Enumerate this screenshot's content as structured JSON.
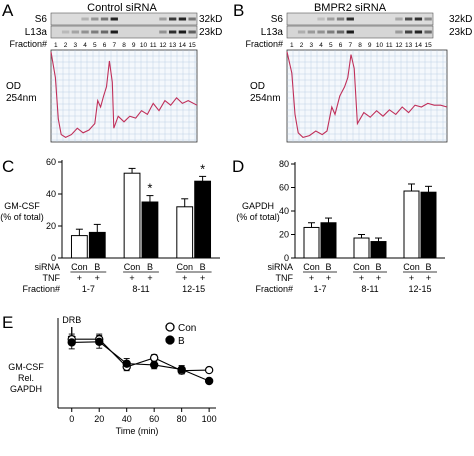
{
  "panels": [
    {
      "letter": "A",
      "title": "Control siRNA",
      "blot_labels": [
        "S6",
        "L13a",
        "Fraction#"
      ],
      "kd_labels": [
        "32kD",
        "23kD"
      ],
      "fractions": [
        "1",
        "2",
        "3",
        "4",
        "5",
        "6",
        "7",
        "8",
        "9",
        "10",
        "11",
        "12",
        "13",
        "14",
        "15"
      ],
      "y_label": [
        "OD",
        "254nm"
      ],
      "trace_color": "#c0305a",
      "grid_color": "#a9c3dc"
    },
    {
      "letter": "B",
      "title": "BMPR2 siRNA",
      "blot_labels": [
        "S6",
        "L13a",
        "Fraction#"
      ],
      "kd_labels": [
        "32kD",
        "23kD"
      ],
      "fractions": [
        "1",
        "2",
        "3",
        "4",
        "5",
        "6",
        "7",
        "8",
        "9",
        "10",
        "11",
        "12",
        "13",
        "14",
        "15"
      ],
      "y_label": [
        "OD",
        "254nm"
      ],
      "trace_color": "#c0305a",
      "grid_color": "#a9c3dc"
    }
  ],
  "chart_data": [
    {
      "panel": "C",
      "type": "bar",
      "ylabel": [
        "GM-CSF",
        "(% of total)"
      ],
      "ylim": [
        0,
        60
      ],
      "yticks": [
        "0",
        "20",
        "40",
        "60"
      ],
      "categories": [
        "1-7",
        "8-11",
        "12-15"
      ],
      "series": [
        {
          "name": "Con",
          "color": "#ffffff",
          "values": [
            14,
            53,
            32
          ],
          "errors": [
            4,
            3,
            5
          ]
        },
        {
          "name": "B",
          "color": "#000000",
          "values": [
            16,
            35,
            48
          ],
          "errors": [
            5,
            4,
            3
          ]
        }
      ],
      "annotations": [
        {
          "category": "8-11",
          "series": "B",
          "text": "*"
        },
        {
          "category": "12-15",
          "series": "B",
          "text": "*"
        }
      ],
      "row_labels": {
        "sirna": "siRNA",
        "tnf": "TNF",
        "fraction": "Fraction#"
      },
      "sirna": [
        "Con",
        "B"
      ],
      "tnf": [
        "+",
        "+"
      ]
    },
    {
      "panel": "D",
      "type": "bar",
      "ylabel": [
        "GAPDH",
        "(% of total)"
      ],
      "ylim": [
        0,
        80
      ],
      "yticks": [
        "0",
        "20",
        "40",
        "60",
        "80"
      ],
      "categories": [
        "1-7",
        "8-11",
        "12-15"
      ],
      "series": [
        {
          "name": "Con",
          "color": "#ffffff",
          "values": [
            26,
            17,
            57
          ],
          "errors": [
            4,
            3,
            6
          ]
        },
        {
          "name": "B",
          "color": "#000000",
          "values": [
            30,
            14,
            56
          ],
          "errors": [
            4,
            3,
            5
          ]
        }
      ],
      "row_labels": {
        "sirna": "siRNA",
        "tnf": "TNF",
        "fraction": "Fraction#"
      },
      "sirna": [
        "Con",
        "B"
      ],
      "tnf": [
        "+",
        "+"
      ]
    },
    {
      "panel": "E",
      "type": "line",
      "xlabel": "Time (min)",
      "ylabel": [
        "GM-CSF",
        "Rel.",
        "GAPDH"
      ],
      "x": [
        0,
        20,
        40,
        60,
        80,
        100
      ],
      "xticks": [
        "0",
        "20",
        "40",
        "60",
        "80",
        "100"
      ],
      "xlim": [
        -10,
        105
      ],
      "ylim": [
        0,
        1.4
      ],
      "annotation": {
        "text": "DRB",
        "x": 0
      },
      "series": [
        {
          "name": "Con",
          "marker": "open",
          "values": [
            1.07,
            1.07,
            0.64,
            0.78,
            0.58,
            0.59
          ],
          "errors": [
            0.08,
            0.08,
            0.06,
            0.05,
            0.05,
            0.03
          ]
        },
        {
          "name": "B",
          "marker": "filled",
          "values": [
            1.02,
            1.03,
            0.69,
            0.67,
            0.6,
            0.42
          ],
          "errors": [
            0.1,
            0.1,
            0.08,
            0.06,
            0.06,
            0.03
          ]
        }
      ]
    }
  ]
}
